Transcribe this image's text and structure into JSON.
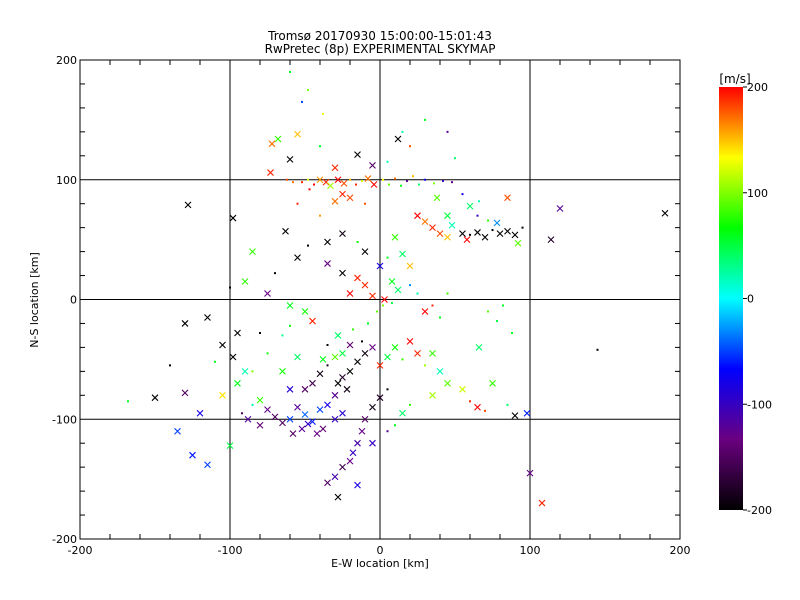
{
  "chart_data": {
    "type": "scatter",
    "title": "Tromsø 20170930 15:00:00-15:01:43",
    "subtitle": "RwPretec (8p) EXPERIMENTAL SKYMAP",
    "xlabel": "E-W location [km]",
    "ylabel": "N-S location [km]",
    "xlim": [
      -200,
      200
    ],
    "ylim": [
      -200,
      200
    ],
    "xticks": [
      "-200",
      "-100",
      "0",
      "100",
      "200"
    ],
    "yticks": [
      "-200",
      "-100",
      "0",
      "100",
      "200"
    ],
    "grid": true,
    "colorbar": {
      "label": "[m/s]",
      "range": [
        -200,
        200
      ],
      "ticks": [
        "200",
        "100",
        "0",
        "-100",
        "-200"
      ],
      "colors": [
        "#000000",
        "#6a0080",
        "#0000ff",
        "#00ffff",
        "#00ff00",
        "#ffff00",
        "#ff0000"
      ]
    },
    "marker_types": [
      "cross",
      "dot"
    ],
    "points": [
      [
        -55,
        138,
        150,
        "x"
      ],
      [
        -68,
        134,
        80,
        "x"
      ],
      [
        -72,
        130,
        170,
        "x"
      ],
      [
        -60,
        117,
        -200,
        "x"
      ],
      [
        -73,
        106,
        190,
        "x"
      ],
      [
        -62,
        100,
        180,
        "."
      ],
      [
        -58,
        98,
        170,
        "."
      ],
      [
        -52,
        98,
        190,
        "."
      ],
      [
        -48,
        100,
        120,
        "."
      ],
      [
        -44,
        96,
        200,
        "."
      ],
      [
        -40,
        100,
        160,
        "x"
      ],
      [
        -36,
        98,
        190,
        "x"
      ],
      [
        -33,
        95,
        110,
        "x"
      ],
      [
        -28,
        100,
        200,
        "x"
      ],
      [
        -24,
        97,
        180,
        "x"
      ],
      [
        -20,
        100,
        150,
        "."
      ],
      [
        -16,
        96,
        190,
        "."
      ],
      [
        -12,
        99,
        120,
        "."
      ],
      [
        -8,
        101,
        170,
        "x"
      ],
      [
        -4,
        96,
        200,
        "x"
      ],
      [
        2,
        100,
        130,
        "."
      ],
      [
        6,
        96,
        90,
        "."
      ],
      [
        10,
        101,
        170,
        "."
      ],
      [
        14,
        95,
        60,
        "."
      ],
      [
        18,
        99,
        -120,
        "."
      ],
      [
        22,
        103,
        150,
        "."
      ],
      [
        26,
        96,
        40,
        "."
      ],
      [
        30,
        100,
        -80,
        "."
      ],
      [
        36,
        97,
        100,
        "."
      ],
      [
        42,
        99,
        -100,
        "."
      ],
      [
        48,
        98,
        -130,
        "."
      ],
      [
        -15,
        121,
        -200,
        "x"
      ],
      [
        12,
        134,
        -200,
        "x"
      ],
      [
        20,
        128,
        180,
        "."
      ],
      [
        -5,
        112,
        -150,
        "x"
      ],
      [
        5,
        115,
        20,
        "."
      ],
      [
        -40,
        128,
        60,
        "."
      ],
      [
        -30,
        110,
        190,
        "x"
      ],
      [
        -20,
        85,
        180,
        "x"
      ],
      [
        -30,
        82,
        170,
        "x"
      ],
      [
        -47,
        92,
        200,
        "."
      ],
      [
        -55,
        80,
        190,
        "."
      ],
      [
        -40,
        70,
        160,
        "."
      ],
      [
        -10,
        80,
        180,
        "."
      ],
      [
        -25,
        88,
        190,
        "x"
      ],
      [
        35,
        60,
        190,
        "x"
      ],
      [
        40,
        55,
        180,
        "x"
      ],
      [
        30,
        65,
        170,
        "x"
      ],
      [
        25,
        70,
        200,
        "x"
      ],
      [
        45,
        52,
        150,
        "x"
      ],
      [
        55,
        55,
        -200,
        "x"
      ],
      [
        60,
        54,
        -200,
        "."
      ],
      [
        65,
        56,
        -200,
        "x"
      ],
      [
        70,
        52,
        -200,
        "x"
      ],
      [
        75,
        58,
        -200,
        "."
      ],
      [
        80,
        55,
        -200,
        "x"
      ],
      [
        85,
        57,
        -200,
        "x"
      ],
      [
        90,
        54,
        -200,
        "x"
      ],
      [
        95,
        60,
        -200,
        "."
      ],
      [
        58,
        50,
        200,
        "x"
      ],
      [
        48,
        62,
        20,
        "x"
      ],
      [
        45,
        70,
        50,
        "x"
      ],
      [
        72,
        66,
        80,
        "."
      ],
      [
        66,
        82,
        20,
        "."
      ],
      [
        85,
        85,
        180,
        "x"
      ],
      [
        78,
        64,
        -30,
        "x"
      ],
      [
        92,
        47,
        90,
        "x"
      ],
      [
        120,
        76,
        -120,
        "x"
      ],
      [
        114,
        50,
        -180,
        "x"
      ],
      [
        190,
        72,
        -200,
        "x"
      ],
      [
        -128,
        79,
        -200,
        "x"
      ],
      [
        -98,
        68,
        -200,
        "x"
      ],
      [
        -63,
        57,
        -200,
        "x"
      ],
      [
        -48,
        45,
        -200,
        "."
      ],
      [
        -85,
        40,
        80,
        "x"
      ],
      [
        -55,
        35,
        -200,
        "x"
      ],
      [
        -35,
        30,
        -130,
        "x"
      ],
      [
        -25,
        22,
        -200,
        "x"
      ],
      [
        -15,
        18,
        190,
        "x"
      ],
      [
        -10,
        12,
        190,
        "x"
      ],
      [
        -20,
        5,
        200,
        "x"
      ],
      [
        -5,
        3,
        190,
        "x"
      ],
      [
        3,
        0,
        200,
        "x"
      ],
      [
        8,
        15,
        60,
        "x"
      ],
      [
        12,
        8,
        40,
        "x"
      ],
      [
        20,
        12,
        -30,
        "."
      ],
      [
        25,
        5,
        20,
        "."
      ],
      [
        30,
        -10,
        200,
        "x"
      ],
      [
        35,
        -5,
        190,
        "."
      ],
      [
        40,
        -15,
        60,
        "."
      ],
      [
        45,
        5,
        80,
        "."
      ],
      [
        -70,
        22,
        -200,
        "."
      ],
      [
        -75,
        5,
        -130,
        "x"
      ],
      [
        -100,
        10,
        -200,
        "."
      ],
      [
        -60,
        -5,
        60,
        "x"
      ],
      [
        -50,
        -10,
        70,
        "x"
      ],
      [
        -45,
        -18,
        190,
        "x"
      ],
      [
        -60,
        -22,
        60,
        "."
      ],
      [
        -80,
        -28,
        -200,
        "."
      ],
      [
        -95,
        -28,
        -200,
        "x"
      ],
      [
        -115,
        -15,
        -200,
        "x"
      ],
      [
        -130,
        -20,
        -200,
        "x"
      ],
      [
        -105,
        -38,
        -200,
        "x"
      ],
      [
        -98,
        -48,
        -200,
        "x"
      ],
      [
        -90,
        -60,
        20,
        "x"
      ],
      [
        -110,
        -52,
        60,
        "."
      ],
      [
        -140,
        -55,
        -200,
        "."
      ],
      [
        -130,
        -78,
        -150,
        "x"
      ],
      [
        -120,
        -95,
        -80,
        "x"
      ],
      [
        -150,
        -82,
        -200,
        "x"
      ],
      [
        -168,
        -85,
        60,
        "."
      ],
      [
        -135,
        -110,
        -50,
        "x"
      ],
      [
        -125,
        -130,
        -60,
        "x"
      ],
      [
        -115,
        -138,
        -50,
        "x"
      ],
      [
        -100,
        -122,
        50,
        "x"
      ],
      [
        -80,
        -84,
        80,
        "x"
      ],
      [
        -75,
        -92,
        -130,
        "x"
      ],
      [
        -70,
        -98,
        -150,
        "x"
      ],
      [
        -65,
        -103,
        -150,
        "x"
      ],
      [
        -60,
        -100,
        -50,
        "x"
      ],
      [
        -55,
        -90,
        -120,
        "x"
      ],
      [
        -50,
        -96,
        -40,
        "x"
      ],
      [
        -45,
        -102,
        -60,
        "x"
      ],
      [
        -40,
        -92,
        -50,
        "x"
      ],
      [
        -35,
        -88,
        -80,
        "x"
      ],
      [
        -30,
        -80,
        -120,
        "x"
      ],
      [
        -28,
        -70,
        -200,
        "x"
      ],
      [
        -25,
        -65,
        -180,
        "x"
      ],
      [
        -22,
        -75,
        -190,
        "x"
      ],
      [
        -20,
        -60,
        -200,
        "x"
      ],
      [
        -35,
        -55,
        -180,
        "."
      ],
      [
        -40,
        -62,
        -190,
        "x"
      ],
      [
        -45,
        -70,
        -160,
        "x"
      ],
      [
        -50,
        -75,
        -150,
        "x"
      ],
      [
        -15,
        -52,
        -200,
        "x"
      ],
      [
        -10,
        -45,
        -190,
        "x"
      ],
      [
        -5,
        -40,
        -130,
        "x"
      ],
      [
        -12,
        -35,
        -200,
        "."
      ],
      [
        -20,
        -38,
        -140,
        "x"
      ],
      [
        -25,
        -45,
        50,
        "x"
      ],
      [
        -30,
        -48,
        90,
        "x"
      ],
      [
        -38,
        -50,
        60,
        "x"
      ],
      [
        -55,
        -48,
        40,
        "x"
      ],
      [
        -65,
        -60,
        70,
        "x"
      ],
      [
        -60,
        -75,
        -90,
        "x"
      ],
      [
        0,
        -55,
        190,
        "x"
      ],
      [
        5,
        -48,
        50,
        "x"
      ],
      [
        10,
        -40,
        70,
        "x"
      ],
      [
        15,
        -50,
        80,
        "."
      ],
      [
        20,
        -35,
        200,
        "x"
      ],
      [
        25,
        -45,
        190,
        "x"
      ],
      [
        30,
        -55,
        110,
        "."
      ],
      [
        35,
        -45,
        80,
        "x"
      ],
      [
        40,
        -60,
        20,
        "x"
      ],
      [
        45,
        -70,
        90,
        "x"
      ],
      [
        55,
        -75,
        120,
        "x"
      ],
      [
        60,
        -85,
        190,
        "."
      ],
      [
        65,
        -90,
        200,
        "x"
      ],
      [
        70,
        -93,
        180,
        "."
      ],
      [
        75,
        -70,
        80,
        "x"
      ],
      [
        85,
        -88,
        40,
        "."
      ],
      [
        90,
        -97,
        -200,
        "x"
      ],
      [
        98,
        -95,
        -60,
        "x"
      ],
      [
        5,
        -75,
        -200,
        "."
      ],
      [
        0,
        -82,
        -180,
        "x"
      ],
      [
        -5,
        -90,
        -190,
        "x"
      ],
      [
        -10,
        -100,
        -150,
        "x"
      ],
      [
        -12,
        -110,
        -130,
        "x"
      ],
      [
        -15,
        -120,
        -110,
        "x"
      ],
      [
        -18,
        -128,
        -100,
        "x"
      ],
      [
        -20,
        -135,
        -130,
        "x"
      ],
      [
        -25,
        -140,
        -160,
        "x"
      ],
      [
        -30,
        -148,
        -110,
        "x"
      ],
      [
        -35,
        -153,
        -150,
        "x"
      ],
      [
        -28,
        -165,
        -200,
        "x"
      ],
      [
        -15,
        -155,
        -80,
        "x"
      ],
      [
        -5,
        -120,
        -100,
        "x"
      ],
      [
        5,
        -110,
        -120,
        "."
      ],
      [
        10,
        -105,
        60,
        "."
      ],
      [
        15,
        -95,
        40,
        "x"
      ],
      [
        20,
        -88,
        80,
        "."
      ],
      [
        35,
        -80,
        110,
        "x"
      ],
      [
        100,
        -145,
        -130,
        "x"
      ],
      [
        108,
        -170,
        190,
        "x"
      ],
      [
        145,
        -42,
        -200,
        "."
      ],
      [
        88,
        -28,
        60,
        "."
      ],
      [
        78,
        -18,
        50,
        "."
      ],
      [
        72,
        -10,
        90,
        "."
      ],
      [
        82,
        -5,
        60,
        "."
      ],
      [
        66,
        -40,
        40,
        "x"
      ],
      [
        -85,
        -60,
        100,
        "."
      ],
      [
        -75,
        -45,
        70,
        "."
      ],
      [
        -65,
        -30,
        30,
        "."
      ],
      [
        -95,
        -70,
        60,
        "x"
      ],
      [
        -105,
        -80,
        140,
        "x"
      ],
      [
        -88,
        -100,
        -120,
        "x"
      ],
      [
        -80,
        -105,
        -140,
        "x"
      ],
      [
        -92,
        -95,
        -150,
        "."
      ],
      [
        -85,
        -88,
        20,
        "."
      ],
      [
        -30,
        -100,
        -100,
        "x"
      ],
      [
        -25,
        -95,
        -90,
        "x"
      ],
      [
        -38,
        -108,
        -140,
        "x"
      ],
      [
        -42,
        -112,
        -130,
        "x"
      ],
      [
        -48,
        -104,
        -100,
        "x"
      ],
      [
        -52,
        -108,
        -120,
        "x"
      ],
      [
        -58,
        -112,
        -150,
        "x"
      ],
      [
        -35,
        -38,
        -190,
        "."
      ],
      [
        -28,
        -30,
        40,
        "x"
      ],
      [
        -18,
        -25,
        80,
        "."
      ],
      [
        -8,
        -20,
        60,
        "."
      ],
      [
        -2,
        -10,
        90,
        "."
      ],
      [
        2,
        -5,
        100,
        "."
      ],
      [
        8,
        -3,
        50,
        "."
      ],
      [
        -48,
        175,
        100,
        "."
      ],
      [
        -52,
        165,
        -50,
        "."
      ],
      [
        -60,
        190,
        60,
        "."
      ],
      [
        -38,
        155,
        130,
        "."
      ],
      [
        15,
        140,
        20,
        "."
      ],
      [
        30,
        150,
        60,
        "."
      ],
      [
        45,
        140,
        -120,
        "."
      ],
      [
        50,
        118,
        40,
        "."
      ],
      [
        38,
        85,
        90,
        "x"
      ],
      [
        55,
        88,
        -80,
        "."
      ],
      [
        60,
        78,
        40,
        "x"
      ],
      [
        65,
        70,
        -100,
        "."
      ],
      [
        -90,
        15,
        80,
        "x"
      ],
      [
        -10,
        40,
        -200,
        "x"
      ],
      [
        0,
        28,
        -80,
        "x"
      ],
      [
        5,
        35,
        60,
        "."
      ],
      [
        15,
        38,
        40,
        "x"
      ],
      [
        20,
        28,
        150,
        "x"
      ],
      [
        -35,
        48,
        -200,
        "x"
      ],
      [
        -25,
        55,
        -190,
        "x"
      ],
      [
        -15,
        48,
        70,
        "."
      ],
      [
        10,
        52,
        80,
        "x"
      ]
    ]
  }
}
